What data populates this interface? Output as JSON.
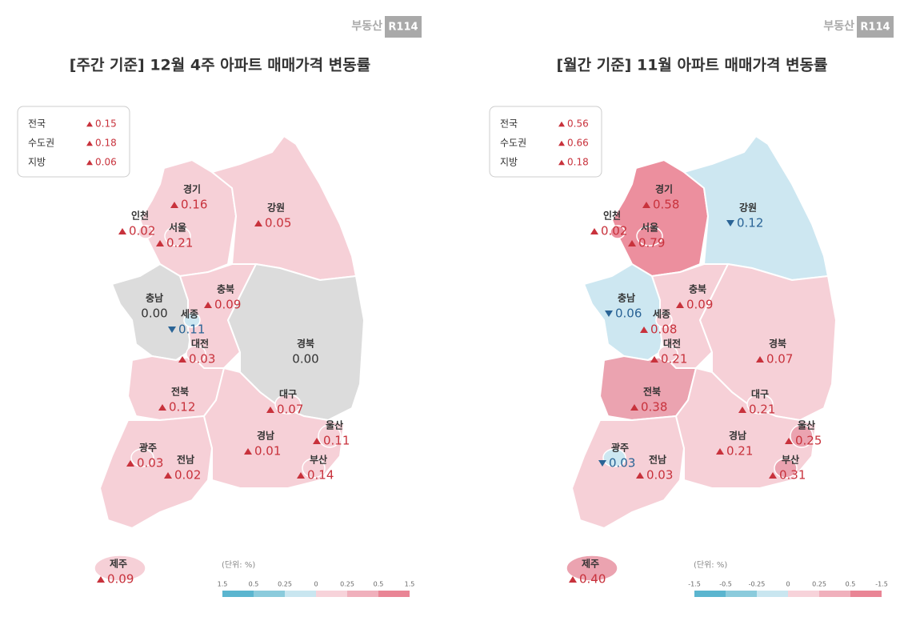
{
  "panels": [
    {
      "brand": {
        "name": "부동산",
        "mark": "R114"
      },
      "title": "[주간 기준] 12월 4주 아파트 매매가격 변동률",
      "summary": [
        {
          "label": "전국",
          "value": "0.15",
          "direction": "up"
        },
        {
          "label": "수도권",
          "value": "0.18",
          "direction": "up"
        },
        {
          "label": "지방",
          "value": "0.06",
          "direction": "up"
        }
      ],
      "regions": [
        {
          "name": "경기",
          "value": "0.16",
          "direction": "up",
          "color": "#f6d0d7"
        },
        {
          "name": "강원",
          "value": "0.05",
          "direction": "up",
          "color": "#f6d0d7"
        },
        {
          "name": "충남",
          "value": "0.00",
          "direction": "flat",
          "color": "#dcdcdc"
        },
        {
          "name": "충북",
          "value": "0.09",
          "direction": "up",
          "color": "#f6d0d7"
        },
        {
          "name": "경북",
          "value": "0.00",
          "direction": "flat",
          "color": "#dcdcdc"
        },
        {
          "name": "전북",
          "value": "0.12",
          "direction": "up",
          "color": "#f6d0d7"
        },
        {
          "name": "전남",
          "value": "0.02",
          "direction": "up",
          "color": "#f6d0d7"
        },
        {
          "name": "경남",
          "value": "0.01",
          "direction": "up",
          "color": "#f6d0d7"
        },
        {
          "name": "제주",
          "value": "0.09",
          "direction": "up",
          "color": "#f6d0d7"
        },
        {
          "name": "서울",
          "value": "0.21",
          "direction": "up",
          "color": "#f6d0d7"
        },
        {
          "name": "인천",
          "value": "0.02",
          "direction": "up",
          "color": "#f6d0d7"
        },
        {
          "name": "세종",
          "value": "0.11",
          "direction": "down",
          "color": "#cde7f1"
        },
        {
          "name": "대전",
          "value": "0.03",
          "direction": "up",
          "color": "#f6d0d7"
        },
        {
          "name": "광주",
          "value": "0.03",
          "direction": "up",
          "color": "#f6d0d7"
        },
        {
          "name": "대구",
          "value": "0.07",
          "direction": "up",
          "color": "#f6d0d7"
        },
        {
          "name": "울산",
          "value": "0.11",
          "direction": "up",
          "color": "#f6d0d7"
        },
        {
          "name": "부산",
          "value": "0.14",
          "direction": "up",
          "color": "#f6d0d7"
        }
      ],
      "legend": {
        "unit": "(단위: %)",
        "ticks": [
          "1.5",
          "0.5",
          "0.25",
          "0",
          "0.25",
          "0.5",
          "1.5"
        ]
      }
    },
    {
      "brand": {
        "name": "부동산",
        "mark": "R114"
      },
      "title": "[월간 기준] 11월 아파트 매매가격 변동률",
      "summary": [
        {
          "label": "전국",
          "value": "0.56",
          "direction": "up"
        },
        {
          "label": "수도권",
          "value": "0.66",
          "direction": "up"
        },
        {
          "label": "지방",
          "value": "0.18",
          "direction": "up"
        }
      ],
      "regions": [
        {
          "name": "경기",
          "value": "0.58",
          "direction": "up",
          "color": "#ec8f9e"
        },
        {
          "name": "강원",
          "value": "0.12",
          "direction": "down",
          "color": "#cde7f1"
        },
        {
          "name": "충남",
          "value": "0.06",
          "direction": "down",
          "color": "#cde7f1"
        },
        {
          "name": "충북",
          "value": "0.09",
          "direction": "up",
          "color": "#f6d0d7"
        },
        {
          "name": "경북",
          "value": "0.07",
          "direction": "up",
          "color": "#f6d0d7"
        },
        {
          "name": "전북",
          "value": "0.38",
          "direction": "up",
          "color": "#eba3b0"
        },
        {
          "name": "전남",
          "value": "0.03",
          "direction": "up",
          "color": "#f6d0d7"
        },
        {
          "name": "경남",
          "value": "0.21",
          "direction": "up",
          "color": "#f6d0d7"
        },
        {
          "name": "제주",
          "value": "0.40",
          "direction": "up",
          "color": "#eba3b0"
        },
        {
          "name": "서울",
          "value": "0.79",
          "direction": "up",
          "color": "#ec8f9e"
        },
        {
          "name": "인천",
          "value": "0.02",
          "direction": "up",
          "color": "#ec8f9e"
        },
        {
          "name": "세종",
          "value": "0.08",
          "direction": "up",
          "color": "#f6d0d7"
        },
        {
          "name": "대전",
          "value": "0.21",
          "direction": "up",
          "color": "#f6d0d7"
        },
        {
          "name": "광주",
          "value": "0.03",
          "direction": "down",
          "color": "#cde7f1"
        },
        {
          "name": "대구",
          "value": "0.21",
          "direction": "up",
          "color": "#f6d0d7"
        },
        {
          "name": "울산",
          "value": "0.25",
          "direction": "up",
          "color": "#eba3b0"
        },
        {
          "name": "부산",
          "value": "0.31",
          "direction": "up",
          "color": "#eba3b0"
        }
      ],
      "legend": {
        "unit": "(단위: %)",
        "ticks": [
          "-1.5",
          "-0.5",
          "-0.25",
          "0",
          "0.25",
          "0.5",
          "-1.5"
        ]
      }
    }
  ]
}
